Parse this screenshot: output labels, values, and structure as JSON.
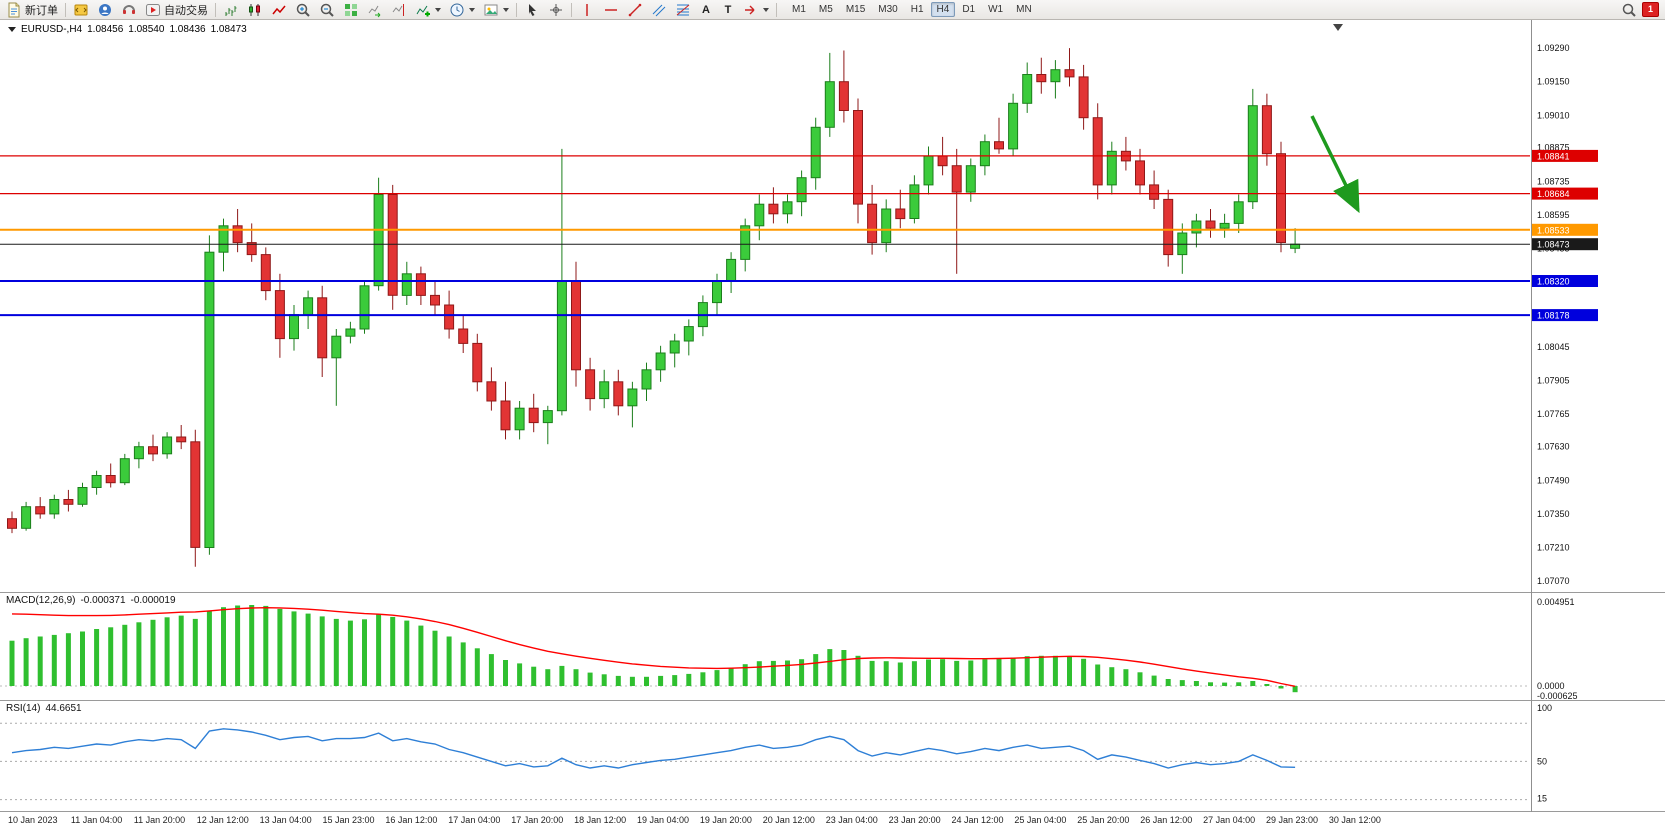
{
  "toolbar": {
    "new_order_label": "新订单",
    "autotrading_label": "自动交易",
    "timeframes": [
      "M1",
      "M5",
      "M15",
      "M30",
      "H1",
      "H4",
      "D1",
      "W1",
      "MN"
    ],
    "active_timeframe": "H4",
    "notification_count": "1"
  },
  "icons": {
    "text_tool": "A",
    "label_tool": "T"
  },
  "chart_header": {
    "symbol_period": "EURUSD-,H4",
    "open": "1.08456",
    "high": "1.08540",
    "low": "1.08436",
    "close": "1.08473"
  },
  "price_axis": {
    "ticks": [
      "1.09290",
      "1.09150",
      "1.09010",
      "1.08875",
      "1.08735",
      "1.08595",
      "1.08455",
      "1.08315",
      "1.08175",
      "1.08045",
      "1.07905",
      "1.07765",
      "1.07630",
      "1.07490",
      "1.07350",
      "1.07210",
      "1.07070"
    ]
  },
  "macd": {
    "label": "MACD(12,26,9)",
    "value_main": "-0.000371",
    "value_signal": "-0.000019",
    "axis": [
      "0.004951",
      "0.0000",
      "-0.000625"
    ]
  },
  "rsi": {
    "label": "RSI(14)",
    "value": "44.6651",
    "axis": [
      "100",
      "50",
      "15"
    ]
  },
  "time_axis": [
    "10 Jan 2023",
    "11 Jan 04:00",
    "11 Jan 20:00",
    "12 Jan 12:00",
    "13 Jan 04:00",
    "15 Jan 23:00",
    "16 Jan 12:00",
    "17 Jan 04:00",
    "17 Jan 20:00",
    "18 Jan 12:00",
    "19 Jan 04:00",
    "19 Jan 20:00",
    "20 Jan 12:00",
    "23 Jan 04:00",
    "23 Jan 20:00",
    "24 Jan 12:00",
    "25 Jan 04:00",
    "25 Jan 20:00",
    "26 Jan 12:00",
    "27 Jan 04:00",
    "29 Jan 23:00",
    "30 Jan 12:00"
  ],
  "chart_data": {
    "type": "candlestick",
    "symbol": "EURUSD",
    "timeframe": "H4",
    "panels": [
      "price",
      "MACD(12,26,9)",
      "RSI(14)"
    ],
    "visible_price_range": [
      1.0703,
      1.0941
    ],
    "colors": {
      "up_fill": "#3BCB3B",
      "up_border": "#1B7E1B",
      "down_fill": "#E23434",
      "down_border": "#8F1818",
      "macd_bar": "#2FBF2F",
      "macd_signal": "#FF0000",
      "rsi": "#2E7FD6",
      "background": "#FFFFFF"
    },
    "levels": [
      {
        "price": "1.08841",
        "value": 1.08841,
        "color": "#DD0000",
        "width": 1.2
      },
      {
        "price": "1.08684",
        "value": 1.08684,
        "color": "#DD0000",
        "width": 1.2
      },
      {
        "price": "1.08533",
        "value": 1.08533,
        "color": "#FF9900",
        "width": 2
      },
      {
        "price": "1.08473",
        "value": 1.08473,
        "color": "#1A1A1A",
        "width": 1
      },
      {
        "price": "1.08320",
        "value": 1.0832,
        "color": "#0000DD",
        "width": 2
      },
      {
        "price": "1.08178",
        "value": 1.08178,
        "color": "#0000DD",
        "width": 2
      }
    ],
    "annotation_arrow": {
      "color": "#1E9A1E",
      "from": [
        1312,
        96
      ],
      "to": [
        1358,
        190
      ],
      "direction": "down-right"
    },
    "candles": [
      [
        1.0733,
        1.0736,
        1.0727,
        1.0729
      ],
      [
        1.0729,
        1.074,
        1.0728,
        1.0738
      ],
      [
        1.0738,
        1.0742,
        1.0733,
        1.0735
      ],
      [
        1.0735,
        1.0743,
        1.0733,
        1.0741
      ],
      [
        1.0741,
        1.0745,
        1.0736,
        1.0739
      ],
      [
        1.0739,
        1.0748,
        1.0738,
        1.0746
      ],
      [
        1.0746,
        1.0753,
        1.0743,
        1.0751
      ],
      [
        1.0751,
        1.0756,
        1.0746,
        1.0748
      ],
      [
        1.0748,
        1.076,
        1.0747,
        1.0758
      ],
      [
        1.0758,
        1.0765,
        1.0754,
        1.0763
      ],
      [
        1.0763,
        1.0768,
        1.0757,
        1.076
      ],
      [
        1.076,
        1.0769,
        1.0758,
        1.0767
      ],
      [
        1.0767,
        1.0772,
        1.0762,
        1.0765
      ],
      [
        1.0765,
        1.077,
        1.0713,
        1.0721
      ],
      [
        1.0721,
        1.0851,
        1.0718,
        1.0844
      ],
      [
        1.0844,
        1.0858,
        1.0836,
        1.0855
      ],
      [
        1.0855,
        1.0862,
        1.0844,
        1.0848
      ],
      [
        1.0848,
        1.0856,
        1.084,
        1.0843
      ],
      [
        1.0843,
        1.0846,
        1.0824,
        1.0828
      ],
      [
        1.0828,
        1.0835,
        1.08,
        1.0808
      ],
      [
        1.0808,
        1.0822,
        1.0803,
        1.0818
      ],
      [
        1.0818,
        1.0828,
        1.0812,
        1.0825
      ],
      [
        1.0825,
        1.083,
        1.0792,
        1.08
      ],
      [
        1.08,
        1.0812,
        1.078,
        1.0809
      ],
      [
        1.0809,
        1.0815,
        1.0806,
        1.0812
      ],
      [
        1.0812,
        1.0832,
        1.081,
        1.083
      ],
      [
        1.083,
        1.0875,
        1.0828,
        1.0868
      ],
      [
        1.0868,
        1.0872,
        1.082,
        1.0826
      ],
      [
        1.0826,
        1.084,
        1.0822,
        1.0835
      ],
      [
        1.0835,
        1.0838,
        1.0822,
        1.0826
      ],
      [
        1.0826,
        1.0832,
        1.0818,
        1.0822
      ],
      [
        1.0822,
        1.0828,
        1.0808,
        1.0812
      ],
      [
        1.0812,
        1.0818,
        1.0802,
        1.0806
      ],
      [
        1.0806,
        1.081,
        1.0786,
        1.079
      ],
      [
        1.079,
        1.0796,
        1.0778,
        1.0782
      ],
      [
        1.0782,
        1.079,
        1.0766,
        1.077
      ],
      [
        1.077,
        1.0782,
        1.0766,
        1.0779
      ],
      [
        1.0779,
        1.0785,
        1.0769,
        1.0773
      ],
      [
        1.0773,
        1.078,
        1.0764,
        1.0778
      ],
      [
        1.0778,
        1.0887,
        1.0776,
        1.0832
      ],
      [
        1.0832,
        1.084,
        1.0788,
        1.0795
      ],
      [
        1.0795,
        1.08,
        1.0778,
        1.0783
      ],
      [
        1.0783,
        1.0795,
        1.0779,
        1.079
      ],
      [
        1.079,
        1.0795,
        1.0776,
        1.078
      ],
      [
        1.078,
        1.079,
        1.0771,
        1.0787
      ],
      [
        1.0787,
        1.0798,
        1.0782,
        1.0795
      ],
      [
        1.0795,
        1.0805,
        1.079,
        1.0802
      ],
      [
        1.0802,
        1.081,
        1.0796,
        1.0807
      ],
      [
        1.0807,
        1.0816,
        1.0801,
        1.0813
      ],
      [
        1.0813,
        1.0826,
        1.0809,
        1.0823
      ],
      [
        1.0823,
        1.0835,
        1.0818,
        1.0832
      ],
      [
        1.0832,
        1.0844,
        1.0827,
        1.0841
      ],
      [
        1.0841,
        1.0858,
        1.0836,
        1.0855
      ],
      [
        1.0855,
        1.0868,
        1.0849,
        1.0864
      ],
      [
        1.0864,
        1.0871,
        1.0856,
        1.086
      ],
      [
        1.086,
        1.0868,
        1.0856,
        1.0865
      ],
      [
        1.0865,
        1.0878,
        1.0859,
        1.0875
      ],
      [
        1.0875,
        1.09,
        1.087,
        1.0896
      ],
      [
        1.0896,
        1.0927,
        1.0892,
        1.0915
      ],
      [
        1.0915,
        1.0928,
        1.0898,
        1.0903
      ],
      [
        1.0903,
        1.0908,
        1.0856,
        1.0864
      ],
      [
        1.0864,
        1.0872,
        1.0843,
        1.0848
      ],
      [
        1.0848,
        1.0866,
        1.0844,
        1.0862
      ],
      [
        1.0862,
        1.087,
        1.0854,
        1.0858
      ],
      [
        1.0858,
        1.0876,
        1.0856,
        1.0872
      ],
      [
        1.0872,
        1.0888,
        1.0868,
        1.0884
      ],
      [
        1.0884,
        1.0892,
        1.0876,
        1.088
      ],
      [
        1.088,
        1.0887,
        1.0835,
        1.0869
      ],
      [
        1.0869,
        1.0883,
        1.0865,
        1.088
      ],
      [
        1.088,
        1.0893,
        1.0876,
        1.089
      ],
      [
        1.089,
        1.09,
        1.0885,
        1.0887
      ],
      [
        1.0887,
        1.091,
        1.0884,
        1.0906
      ],
      [
        1.0906,
        1.0923,
        1.0902,
        1.0918
      ],
      [
        1.0918,
        1.0925,
        1.091,
        1.0915
      ],
      [
        1.0915,
        1.0924,
        1.0908,
        1.092
      ],
      [
        1.092,
        1.0929,
        1.0913,
        1.0917
      ],
      [
        1.0917,
        1.0922,
        1.0895,
        1.09
      ],
      [
        1.09,
        1.0906,
        1.0866,
        1.0872
      ],
      [
        1.0872,
        1.089,
        1.0868,
        1.0886
      ],
      [
        1.0886,
        1.0892,
        1.0878,
        1.0882
      ],
      [
        1.0882,
        1.0887,
        1.0868,
        1.0872
      ],
      [
        1.0872,
        1.0878,
        1.0862,
        1.0866
      ],
      [
        1.0866,
        1.087,
        1.0838,
        1.0843
      ],
      [
        1.0843,
        1.0856,
        1.0835,
        1.0852
      ],
      [
        1.0852,
        1.086,
        1.0846,
        1.0857
      ],
      [
        1.0857,
        1.0862,
        1.085,
        1.0854
      ],
      [
        1.0854,
        1.086,
        1.085,
        1.0856
      ],
      [
        1.0856,
        1.0868,
        1.0852,
        1.0865
      ],
      [
        1.0865,
        1.0912,
        1.0862,
        1.0905
      ],
      [
        1.0905,
        1.091,
        1.088,
        1.0885
      ],
      [
        1.0885,
        1.089,
        1.0844,
        1.0848
      ],
      [
        1.08456,
        1.0854,
        1.08436,
        1.08473
      ]
    ],
    "macd_histogram": [
      0.0027,
      0.00285,
      0.00295,
      0.00305,
      0.00315,
      0.00325,
      0.0034,
      0.0035,
      0.00365,
      0.0038,
      0.00395,
      0.0041,
      0.0042,
      0.004,
      0.00445,
      0.0047,
      0.0048,
      0.00483,
      0.00478,
      0.0046,
      0.00445,
      0.00432,
      0.00415,
      0.004,
      0.0039,
      0.00398,
      0.0043,
      0.00412,
      0.0039,
      0.0036,
      0.0033,
      0.00295,
      0.0026,
      0.00225,
      0.0019,
      0.00155,
      0.00135,
      0.00115,
      0.001,
      0.0012,
      0.001,
      0.0008,
      0.0007,
      0.0006,
      0.00055,
      0.00055,
      0.0006,
      0.00065,
      0.00072,
      0.00082,
      0.00095,
      0.0011,
      0.0013,
      0.00148,
      0.0015,
      0.00152,
      0.0016,
      0.0019,
      0.0022,
      0.00215,
      0.0018,
      0.0015,
      0.00148,
      0.0014,
      0.00148,
      0.00158,
      0.0016,
      0.0015,
      0.00152,
      0.0016,
      0.00162,
      0.0017,
      0.00178,
      0.0018,
      0.0018,
      0.00178,
      0.00162,
      0.00128,
      0.00112,
      0.001,
      0.00082,
      0.00062,
      0.00042,
      0.00035,
      0.0003,
      0.00022,
      0.0002,
      0.00022,
      0.0003,
      0.00012,
      -0.00015,
      -0.000371
    ],
    "macd_signal": [
      0.0043,
      0.00428,
      0.00425,
      0.00422,
      0.0042,
      0.0042,
      0.0042,
      0.00421,
      0.00424,
      0.00428,
      0.00432,
      0.00436,
      0.0044,
      0.00442,
      0.00448,
      0.00455,
      0.00461,
      0.00465,
      0.00467,
      0.00466,
      0.00463,
      0.00458,
      0.00452,
      0.00445,
      0.00438,
      0.00432,
      0.00428,
      0.00422,
      0.00413,
      0.004,
      0.00385,
      0.00366,
      0.00344,
      0.0032,
      0.00295,
      0.0027,
      0.00247,
      0.00226,
      0.00207,
      0.00192,
      0.00178,
      0.00165,
      0.00153,
      0.00142,
      0.00132,
      0.00124,
      0.00117,
      0.00112,
      0.00108,
      0.00106,
      0.00105,
      0.00106,
      0.00109,
      0.00113,
      0.00118,
      0.00123,
      0.00129,
      0.00137,
      0.00147,
      0.00157,
      0.00164,
      0.00167,
      0.00168,
      0.00167,
      0.00166,
      0.00165,
      0.00165,
      0.00164,
      0.00163,
      0.00163,
      0.00164,
      0.00166,
      0.00169,
      0.00172,
      0.00175,
      0.00177,
      0.00176,
      0.00171,
      0.00163,
      0.00154,
      0.00143,
      0.0013,
      0.00116,
      0.00102,
      0.00089,
      0.00077,
      0.00066,
      0.00055,
      0.00046,
      0.00034,
      0.00015,
      -1.9e-05
    ],
    "rsi": [
      58,
      60,
      61,
      63,
      62,
      64,
      66,
      65,
      68,
      70,
      69,
      71,
      70,
      62,
      78,
      80,
      79,
      77,
      74,
      70,
      72,
      73,
      69,
      71,
      71,
      72,
      76,
      69,
      71,
      68,
      66,
      61,
      58,
      54,
      50,
      46,
      48,
      45,
      46,
      53,
      47,
      44,
      46,
      44,
      47,
      49,
      51,
      52,
      54,
      56,
      58,
      60,
      63,
      65,
      62,
      63,
      65,
      70,
      73,
      70,
      60,
      55,
      58,
      56,
      59,
      62,
      60,
      57,
      59,
      62,
      60,
      63,
      65,
      62,
      63,
      64,
      60,
      52,
      56,
      54,
      51,
      48,
      44,
      47,
      49,
      47,
      48,
      50,
      56,
      51,
      45,
      44.6651
    ],
    "rsi_levels": [
      85,
      50,
      15
    ]
  }
}
